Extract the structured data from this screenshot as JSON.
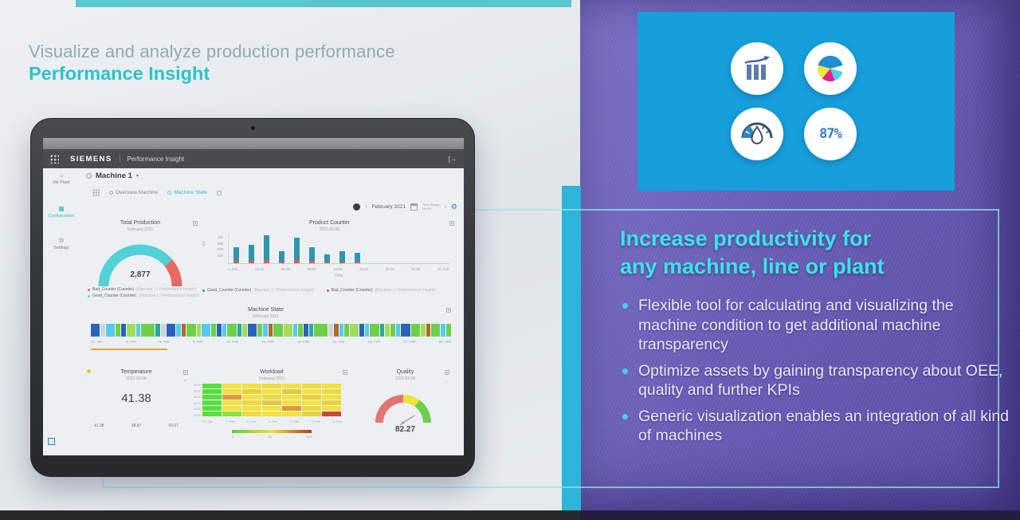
{
  "slide": {
    "title_line1": "Visualize and analyze production performance",
    "title_line2": "Performance Insight"
  },
  "right_panel": {
    "accent_color": "#179fdb",
    "heading_color": "#3ce4e8",
    "heading_line1": "Increase productivity for",
    "heading_line2": "any machine, line or plant",
    "bullets": [
      "Flexible tool for calculating and visualizing the machine condition to get additional machine transparency",
      "Optimize assets by gaining transparency about OEE, quality and further KPIs",
      "Generic visualization enables an integration of all kind of machines"
    ],
    "icons": [
      "bar-chart-trend-icon",
      "pie-chart-icon",
      "gauge-drop-icon",
      "percent-icon"
    ],
    "percent_label": "87%"
  },
  "tablet": {
    "header": {
      "brand": "SIEMENS",
      "app_title": "Performance Insight",
      "logout_glyph": "[→"
    },
    "sidebar": {
      "items": [
        {
          "label": "My Plant",
          "icon": "plant-icon",
          "glyph": "⌂"
        },
        {
          "label": "Configuration",
          "icon": "configuration-icon",
          "glyph": "▦"
        },
        {
          "label": "Settings",
          "icon": "settings-icon",
          "glyph": "⚙"
        }
      ]
    },
    "page": {
      "machine_title": "Machine 1",
      "caret": "▾",
      "tabs": [
        {
          "label": "Overview Machine"
        },
        {
          "label": "Machine State"
        }
      ],
      "date_nav": {
        "prev": "‹",
        "period": "February 2021",
        "range_line1": "Time Range",
        "range_line2": "Month",
        "next": "›",
        "gear_glyph": "⚙"
      }
    }
  },
  "chart_data": [
    {
      "id": "total_production",
      "type": "gauge",
      "title": "Total Production",
      "subtitle": "February 2021",
      "value": "2,877",
      "segments": [
        [
          "#52d2d7",
          0.78
        ],
        [
          "#e66a62",
          0.22
        ]
      ],
      "legend": [
        {
          "label": "Bad_Counter (Counter)",
          "color": "#e66a62",
          "note": "(Machine 1 \\ Performance Insight)"
        },
        {
          "label": "Good_Counter (Counter)",
          "color": "#52d2d7",
          "note": "(Machine 1 \\ Performance Insight)"
        }
      ]
    },
    {
      "id": "product_counter",
      "type": "bar",
      "title": "Product Counter",
      "subtitle": "2021-02-06",
      "ylabel": "Qty",
      "xlabel": "Time",
      "ylim": [
        0,
        450
      ],
      "yticks": [
        "400",
        "300",
        "200",
        "100"
      ],
      "xticklabels": [
        "6. Feb",
        "03:00",
        "06:00",
        "09:00",
        "12:00",
        "15:00",
        "18:00",
        "21:00",
        "15. Feb"
      ],
      "series": [
        {
          "name": "Good_Counter (Counter)",
          "color": "#2e96ad",
          "note": "(Machine 1 \\ Performance Insight)",
          "values": [
            205,
            250,
            380,
            155,
            345,
            210,
            115,
            160,
            135
          ]
        },
        {
          "name": "Bad_Counter (Counter)",
          "color": "#d45f5f",
          "note": "(Machine 1 \\ Performance Insight)",
          "values": [
            35,
            35,
            45,
            25,
            45,
            35,
            22,
            28,
            24
          ]
        }
      ],
      "legend_position": "bottom"
    },
    {
      "id": "machine_state",
      "type": "timeline",
      "title": "Machine State",
      "subtitle": "February 2021",
      "xticklabels": [
        "31. Jan",
        "3. Feb",
        "6. Feb",
        "9. Feb",
        "12. Feb",
        "15. Feb",
        "18. Feb",
        "21. Feb",
        "24. Feb",
        "27. Feb",
        "28. Feb"
      ],
      "segments": [
        [
          "#2a63b8",
          2
        ],
        [
          "#cdd5da",
          1
        ],
        [
          "#58c9ee",
          2
        ],
        [
          "#6fcf4a",
          1
        ],
        [
          "#2a63b8",
          1
        ],
        [
          "#a5dd5a",
          2
        ],
        [
          "#58c9ee",
          1
        ],
        [
          "#6fcf4a",
          3
        ],
        [
          "#2aa7a7",
          1
        ],
        [
          "#cdd5da",
          1
        ],
        [
          "#2a63b8",
          2
        ],
        [
          "#58c9ee",
          1
        ],
        [
          "#b06a2c",
          1
        ],
        [
          "#6fcf4a",
          2
        ],
        [
          "#a5dd5a",
          1
        ],
        [
          "#58c9ee",
          2
        ],
        [
          "#6fcf4a",
          1
        ],
        [
          "#2a63b8",
          1
        ],
        [
          "#58c9ee",
          1
        ],
        [
          "#6fcf4a",
          2
        ],
        [
          "#2aa7a7",
          1
        ],
        [
          "#a5dd5a",
          1
        ],
        [
          "#2a63b8",
          2
        ],
        [
          "#6fcf4a",
          1
        ],
        [
          "#58c9ee",
          1
        ],
        [
          "#b06a2c",
          1
        ],
        [
          "#6fcf4a",
          2
        ],
        [
          "#a5dd5a",
          2
        ],
        [
          "#58c9ee",
          1
        ],
        [
          "#6fcf4a",
          1
        ],
        [
          "#2a63b8",
          1
        ],
        [
          "#2aa7a7",
          1
        ],
        [
          "#6fcf4a",
          3
        ],
        [
          "#cdd5da",
          1
        ],
        [
          "#b06a2c",
          1
        ],
        [
          "#58c9ee",
          1
        ],
        [
          "#6fcf4a",
          1
        ],
        [
          "#a5dd5a",
          2
        ],
        [
          "#2a63b8",
          1
        ],
        [
          "#58c9ee",
          1
        ],
        [
          "#6fcf4a",
          2
        ],
        [
          "#2aa7a7",
          1
        ],
        [
          "#a5dd5a",
          1
        ],
        [
          "#6fcf4a",
          1
        ],
        [
          "#58c9ee",
          1
        ],
        [
          "#2a63b8",
          2
        ],
        [
          "#6fcf4a",
          2
        ],
        [
          "#a5dd5a",
          1
        ],
        [
          "#b06a2c",
          1
        ],
        [
          "#6fcf4a",
          2
        ],
        [
          "#58c9ee",
          1
        ],
        [
          "#6fcf4a",
          1
        ]
      ]
    },
    {
      "id": "temperature",
      "type": "value",
      "title": "Temperature",
      "subtitle": "2021-02-06",
      "value": "41.38",
      "stats": [
        "41.38",
        "38.97",
        "43.67"
      ]
    },
    {
      "id": "workload",
      "type": "heatmap",
      "title": "Workload",
      "subtitle": "February 2021",
      "yticklabels": [
        "00:00",
        "04:00",
        "08:00",
        "12:00",
        "16:00",
        "20:00"
      ],
      "xticklabels": [
        "31. Jan",
        "1. Feb",
        "2. Feb",
        "3. Feb",
        "4. Feb",
        "5. Feb",
        "6. Feb"
      ],
      "cells": [
        [
          "#56e03c",
          "#f2e23a",
          "#f2e23a",
          "#ecd93e",
          "#f2e23a",
          "#ecd93e",
          "#f2e23a"
        ],
        [
          "#56e03c",
          "#f2e23a",
          "#e8d23c",
          "#f2e23a",
          "#e2ca3e",
          "#f2e23a",
          "#ecd93e"
        ],
        [
          "#56e03c",
          "#e09a30",
          "#f2e23a",
          "#ecd93e",
          "#f2e23a",
          "#e8d23c",
          "#f2e23a"
        ],
        [
          "#56e03c",
          "#f2e23a",
          "#ecd93e",
          "#e2ca3e",
          "#f2e23a",
          "#f2e23a",
          "#e8d23c"
        ],
        [
          "#56e03c",
          "#f2e23a",
          "#f2e23a",
          "#f2e23a",
          "#e09a30",
          "#ecd93e",
          "#f2e23a"
        ],
        [
          "#56e03c",
          "#8ae03c",
          "#ecd93e",
          "#f2e23a",
          "#f2e23a",
          "#e8d23c",
          "#c24a38"
        ]
      ],
      "scale": {
        "labels": [
          "0",
          "50",
          "100"
        ]
      }
    },
    {
      "id": "quality",
      "type": "gauge",
      "title": "Quality",
      "subtitle": "2021-02-06",
      "value": "82.27",
      "needle_fraction": 0.82,
      "min_label": "0",
      "max_label": "100",
      "segments": [
        [
          "#e57470",
          0.5
        ],
        [
          "#efe23c",
          0.2
        ],
        [
          "#6ed048",
          0.3
        ]
      ]
    }
  ]
}
